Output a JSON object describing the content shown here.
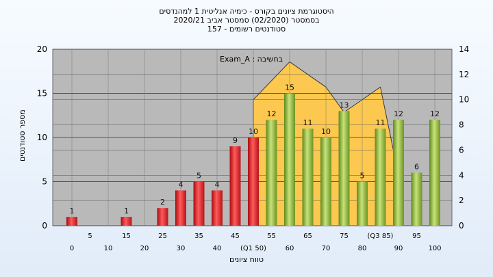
{
  "title": {
    "line1": "היסטוגרמת ציונים בקורס - כימיה אנליטית 1 למהנדסים",
    "line2": "בסמסטר  (02/2020)  סמסטר אביב 2020/21",
    "line3": "סטודנטים רשומים - 157"
  },
  "colors": {
    "below_pass": "#e8262a",
    "above_pass": "#8fb83d",
    "area": "#ffc84a",
    "plot_bg": "#b9b9b9",
    "frame_bg": "#ffffff"
  },
  "chart_data": {
    "type": "bar",
    "title": "היסטוגרמת ציונים בקורס - כימיה אנליטית 1 למהנדסים",
    "ylabel": "מספר סטודנטים",
    "xlabel": "טווח ציונים",
    "ylim": [
      0,
      20
    ],
    "y2lim": [
      0,
      14
    ],
    "yticks": [
      0,
      5,
      10,
      15,
      20
    ],
    "y2ticks": [
      0,
      2,
      4,
      6,
      8,
      10,
      12,
      14
    ],
    "grid": true,
    "annotation": "Exam_A : בחשיבה",
    "xtick_labels_row1": [
      "5",
      "15",
      "25",
      "35",
      "45",
      "55",
      "65",
      "75",
      "(Q3 85)",
      "95"
    ],
    "xtick_labels_row2": [
      "0",
      "10",
      "20",
      "30",
      "40",
      "(Q1 50)",
      "60",
      "70",
      "80",
      "90",
      "100"
    ],
    "categories": [
      "0",
      "5",
      "10",
      "15",
      "20",
      "25",
      "30",
      "35",
      "40",
      "45",
      "50",
      "55",
      "60",
      "65",
      "70",
      "75",
      "80",
      "85",
      "90",
      "95",
      "100"
    ],
    "values": [
      1,
      0,
      0,
      1,
      0,
      2,
      4,
      5,
      4,
      9,
      10,
      12,
      15,
      11,
      10,
      13,
      5,
      11,
      12,
      6,
      12
    ],
    "bar_labels": [
      "1",
      "",
      "",
      "1",
      "",
      "2",
      "4",
      "5",
      "4",
      "9",
      "10",
      "12",
      "15",
      "11",
      "10",
      "13",
      "5",
      "11",
      "12",
      "6",
      "12"
    ],
    "bar_groups": [
      "below",
      "below",
      "below",
      "below",
      "below",
      "below",
      "below",
      "below",
      "below",
      "below",
      "below",
      "above",
      "above",
      "above",
      "above",
      "above",
      "above",
      "above",
      "above",
      "above",
      "above"
    ],
    "area_series": {
      "x": [
        50,
        50,
        60,
        70,
        75,
        85,
        90
      ],
      "y": [
        0,
        10,
        13,
        11,
        9,
        11,
        4
      ]
    }
  }
}
